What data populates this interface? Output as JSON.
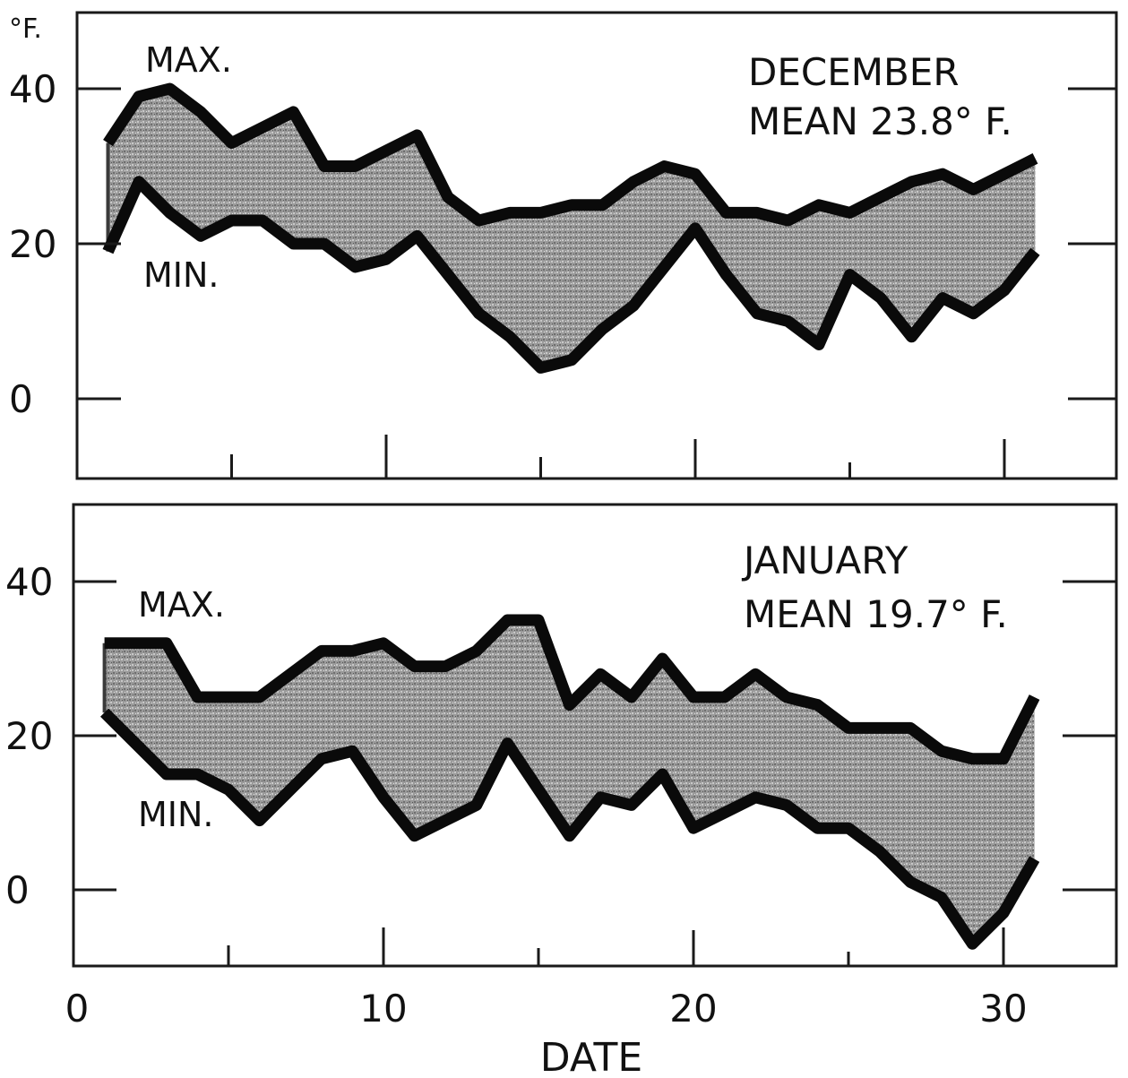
{
  "figure": {
    "unit_label": "°F.",
    "xlabel": "DATE",
    "x_tick_labels": [
      "0",
      "10",
      "20",
      "30"
    ],
    "y_tick_labels": [
      "40",
      "20",
      "0"
    ]
  },
  "chart_data": [
    {
      "type": "area",
      "panel": "top",
      "title": "DECEMBER",
      "subtitle": "MEAN 23.8° F.",
      "max_label": "MAX.",
      "min_label": "MIN.",
      "xlabel": "",
      "ylabel": "°F.",
      "xlim": [
        0,
        34
      ],
      "ylim": [
        -10,
        50
      ],
      "x_ticks": [
        0,
        10,
        20,
        30
      ],
      "y_ticks": [
        0,
        20,
        40
      ],
      "grid": false,
      "x": [
        1,
        2,
        3,
        4,
        5,
        6,
        7,
        8,
        9,
        10,
        11,
        12,
        13,
        14,
        15,
        16,
        17,
        18,
        19,
        20,
        21,
        22,
        23,
        24,
        25,
        26,
        27,
        28,
        29,
        30,
        31
      ],
      "series": [
        {
          "name": "MAX.",
          "values": [
            33,
            39,
            40,
            37,
            33,
            35,
            37,
            30,
            30,
            32,
            34,
            26,
            23,
            24,
            24,
            25,
            25,
            28,
            30,
            29,
            24,
            24,
            23,
            25,
            24,
            26,
            28,
            29,
            27,
            29,
            31
          ]
        },
        {
          "name": "MIN.",
          "values": [
            19,
            28,
            24,
            21,
            23,
            23,
            20,
            20,
            17,
            18,
            21,
            16,
            11,
            8,
            4,
            5,
            9,
            12,
            17,
            22,
            16,
            11,
            10,
            7,
            16,
            13,
            8,
            13,
            11,
            14,
            19
          ]
        }
      ]
    },
    {
      "type": "area",
      "panel": "bottom",
      "title": "JANUARY",
      "subtitle": "MEAN 19.7° F.",
      "max_label": "MAX.",
      "min_label": "MIN.",
      "xlabel": "DATE",
      "ylabel": "",
      "xlim": [
        0,
        34
      ],
      "ylim": [
        -10,
        50
      ],
      "x_ticks": [
        0,
        10,
        20,
        30
      ],
      "y_ticks": [
        0,
        20,
        40
      ],
      "grid": false,
      "x": [
        1,
        2,
        3,
        4,
        5,
        6,
        7,
        8,
        9,
        10,
        11,
        12,
        13,
        14,
        15,
        16,
        17,
        18,
        19,
        20,
        21,
        22,
        23,
        24,
        25,
        26,
        27,
        28,
        29,
        30,
        31
      ],
      "series": [
        {
          "name": "MAX.",
          "values": [
            32,
            32,
            32,
            25,
            25,
            25,
            28,
            31,
            31,
            32,
            29,
            29,
            31,
            35,
            35,
            24,
            28,
            25,
            30,
            25,
            25,
            28,
            25,
            24,
            21,
            21,
            21,
            18,
            17,
            17,
            25
          ]
        },
        {
          "name": "MIN.",
          "values": [
            23,
            19,
            15,
            15,
            13,
            9,
            13,
            17,
            18,
            12,
            7,
            9,
            11,
            19,
            13,
            7,
            12,
            11,
            15,
            8,
            10,
            12,
            11,
            8,
            8,
            5,
            1,
            -1,
            -7,
            -3,
            4
          ]
        }
      ]
    }
  ]
}
